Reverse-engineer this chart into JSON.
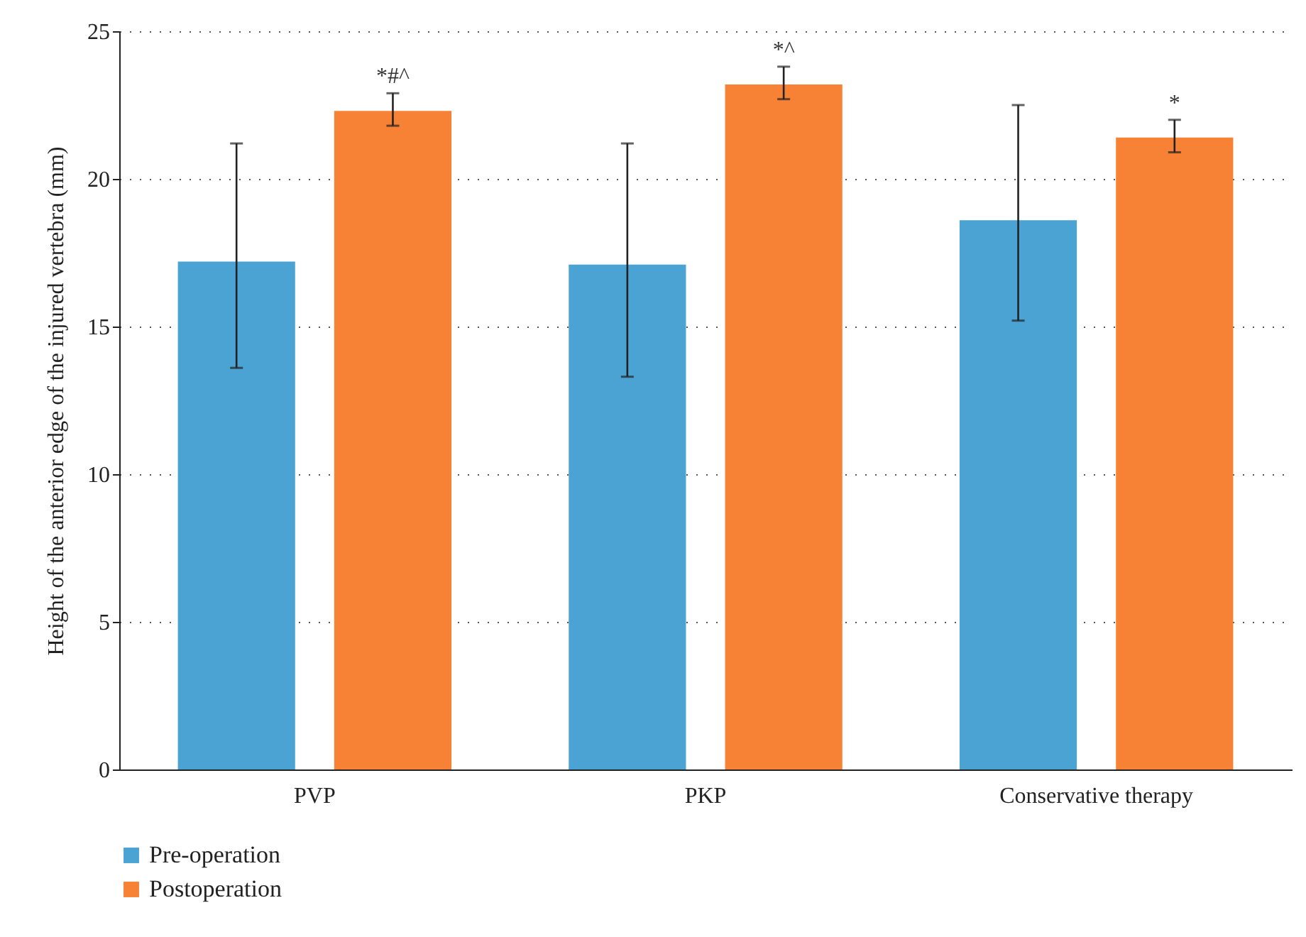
{
  "chart_data": {
    "type": "bar",
    "ylabel": "Height of the anterior edge of the injured vertebra (mm)",
    "categories": [
      "PVP",
      "PKP",
      "Conservative therapy"
    ],
    "series": [
      {
        "name": "Pre-operation",
        "color": "#4ba3d3",
        "values": [
          17.2,
          17.1,
          18.6
        ],
        "errors": [
          [
            13.6,
            21.2
          ],
          [
            13.3,
            21.2
          ],
          [
            15.2,
            22.5
          ]
        ]
      },
      {
        "name": "Postoperation",
        "color": "#f78235",
        "values": [
          22.3,
          23.2,
          21.4
        ],
        "errors": [
          [
            21.8,
            22.9
          ],
          [
            22.7,
            23.8
          ],
          [
            20.9,
            22.0
          ]
        ]
      }
    ],
    "ylim": [
      0,
      25
    ],
    "yticks": [
      0,
      5,
      10,
      15,
      20,
      25
    ],
    "grid": "y",
    "legend": "bottom left",
    "annotations": [
      "*#^",
      "*^",
      "*"
    ]
  }
}
